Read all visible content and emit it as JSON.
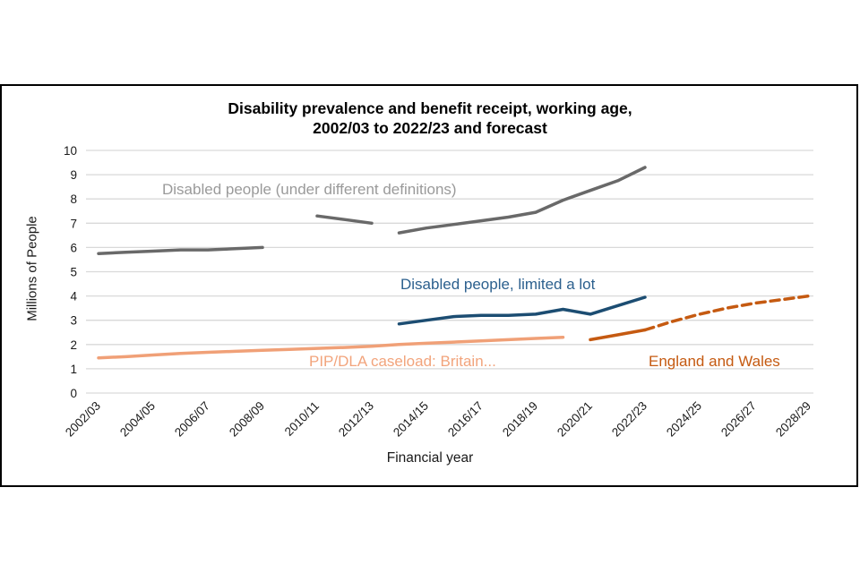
{
  "header": {
    "title_line1": "Disability prevalence and benefit receipt, working age,",
    "title_line2": "2002/03 to 2022/23 and forecast"
  },
  "chart_data": {
    "type": "line",
    "title": "Disability prevalence and benefit receipt, working age, 2002/03 to 2022/23 and forecast",
    "xlabel": "Financial year",
    "ylabel": "Millions of People",
    "ylim": [
      0,
      10
    ],
    "y_tick_step": 1,
    "grid": "horizontal",
    "x_years": [
      "2002/03",
      "2003/04",
      "2004/05",
      "2005/06",
      "2006/07",
      "2007/08",
      "2008/09",
      "2009/10",
      "2010/11",
      "2011/12",
      "2012/13",
      "2013/14",
      "2014/15",
      "2015/16",
      "2016/17",
      "2017/18",
      "2018/19",
      "2019/20",
      "2020/21",
      "2021/22",
      "2022/23",
      "2023/24",
      "2024/25",
      "2025/26",
      "2026/27",
      "2027/28",
      "2028/29"
    ],
    "x_tick_labels": [
      "2002/03",
      "2004/05",
      "2006/07",
      "2008/09",
      "2010/11",
      "2012/13",
      "2014/15",
      "2016/17",
      "2018/19",
      "2020/21",
      "2022/23",
      "2024/25",
      "2026/27",
      "2028/29"
    ],
    "x_tick_every": 2,
    "colors": {
      "grid": "#d9d9d9",
      "gray_line": "#696969",
      "gray_label": "#9a9a9a",
      "blue_line": "#1c4d72",
      "blue_label": "#2c608e",
      "salmon_line": "#f0a077",
      "salmon_label": "#f2a47c",
      "orange_line": "#c55a11",
      "orange_label": "#c55a11"
    },
    "series": [
      {
        "name": "Disabled people (under different definitions)",
        "color_key": "gray_line",
        "segments": [
          {
            "start": 0,
            "values": [
              5.75,
              5.8,
              5.85,
              5.9,
              5.9,
              5.95,
              6.0
            ]
          },
          {
            "start": 8,
            "values": [
              7.3,
              7.15,
              7.0
            ]
          },
          {
            "start": 11,
            "values": [
              6.6,
              6.8,
              6.95,
              7.1,
              7.25,
              7.45,
              7.95,
              8.35,
              8.75,
              9.3
            ]
          }
        ]
      },
      {
        "name": "Disabled people, limited a lot",
        "color_key": "blue_line",
        "segments": [
          {
            "start": 11,
            "values": [
              2.85,
              3.0,
              3.15,
              3.2,
              3.2,
              3.25,
              3.45,
              3.25,
              3.6,
              3.95
            ]
          }
        ]
      },
      {
        "name": "PIP/DLA caseload: Britain...",
        "color_key": "salmon_line",
        "segments": [
          {
            "start": 0,
            "values": [
              1.45,
              1.5,
              1.57,
              1.63,
              1.68,
              1.72,
              1.76,
              1.8,
              1.84,
              1.88,
              1.93,
              2.0,
              2.05,
              2.1,
              2.15,
              2.2,
              2.25,
              2.3
            ]
          }
        ]
      },
      {
        "name": "England and Wales",
        "color_key": "orange_line",
        "segments": [
          {
            "start": 18,
            "values": [
              2.2,
              2.4,
              2.6
            ]
          },
          {
            "start": 20,
            "values": [
              2.6,
              2.95,
              3.25,
              3.5,
              3.7,
              3.85,
              4.0
            ],
            "dashed": true
          }
        ]
      }
    ],
    "annotations": [
      {
        "id": "label-gray",
        "text": "Disabled people (under different definitions)",
        "color_key": "gray_label"
      },
      {
        "id": "label-blue",
        "text": "Disabled people, limited a lot",
        "color_key": "blue_label"
      },
      {
        "id": "label-salmon",
        "text": "PIP/DLA caseload: Britain...",
        "color_key": "salmon_label"
      },
      {
        "id": "label-orange",
        "text": "England and Wales",
        "color_key": "orange_label"
      }
    ]
  }
}
